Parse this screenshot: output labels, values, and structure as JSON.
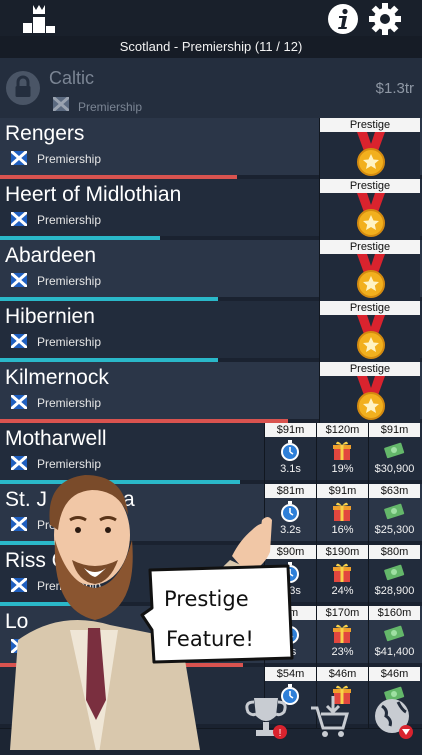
{
  "header": {
    "league_title": "Scotland - Premiership (11 / 12)"
  },
  "locked_team": {
    "name": "Caltic",
    "league": "Premiership",
    "value": "$1.3tr"
  },
  "prestige_label": "Prestige",
  "teams": [
    {
      "name": "Rengers",
      "league": "Premiership",
      "progress": 0.74,
      "progress_color": "#d9534f",
      "kind": "prestige"
    },
    {
      "name": "Heert of Midlothian",
      "league": "Premiership",
      "progress": 0.5,
      "progress_color": "#2ab8c9",
      "kind": "prestige"
    },
    {
      "name": "Abardeen",
      "league": "Premiership",
      "progress": 0.68,
      "progress_color": "#2ab8c9",
      "kind": "prestige"
    },
    {
      "name": "Hibernien",
      "league": "Premiership",
      "progress": 0.68,
      "progress_color": "#2ab8c9",
      "kind": "prestige"
    },
    {
      "name": "Kilmernock",
      "league": "Premiership",
      "progress": 0.9,
      "progress_color": "#d9534f",
      "kind": "prestige"
    },
    {
      "name": "Motharwell",
      "league": "Premiership",
      "progress": 0.75,
      "progress_color": "#2ab8c9",
      "kind": "stats",
      "stats": [
        {
          "head": "$91m",
          "value": "3.1s"
        },
        {
          "head": "$120m",
          "value": "19%"
        },
        {
          "head": "$91m",
          "value": "$30,900"
        }
      ]
    },
    {
      "name": "St. J",
      "name_tail": "a",
      "league": "Premiership",
      "progress": 0.35,
      "progress_color": "#2ab8c9",
      "kind": "stats",
      "stats": [
        {
          "head": "$81m",
          "value": "3.2s"
        },
        {
          "head": "$91m",
          "value": "16%"
        },
        {
          "head": "$63m",
          "value": "$25,300"
        }
      ]
    },
    {
      "name": "Riss Co",
      "league": "Premiership",
      "progress": 0.3,
      "progress_color": "#2ab8c9",
      "kind": "stats",
      "stats": [
        {
          "head": "$90m",
          "value": "3.3s"
        },
        {
          "head": "$190m",
          "value": "24%"
        },
        {
          "head": "$80m",
          "value": "$28,900"
        }
      ]
    },
    {
      "name": "Lo",
      "league": "Premiership",
      "progress": 0.76,
      "progress_color": "#d9534f",
      "kind": "stats",
      "stats": [
        {
          "head": "0m",
          "value": "1s"
        },
        {
          "head": "$170m",
          "value": "23%"
        },
        {
          "head": "$160m",
          "value": "$41,400"
        }
      ]
    },
    {
      "name": "",
      "league": "",
      "progress": 0,
      "progress_color": "#2ab8c9",
      "kind": "stats",
      "stats": [
        {
          "head": "$54m",
          "value": ""
        },
        {
          "head": "$46m",
          "value": ""
        },
        {
          "head": "$46m",
          "value": ""
        }
      ]
    }
  ],
  "speech_bubble": {
    "line1": "Prestige",
    "line2": "Feature!"
  },
  "colors": {
    "background": "#1c2533",
    "accent_red": "#d9534f",
    "accent_cyan": "#2ab8c9",
    "gold": "#f2b01e"
  },
  "icons": {
    "top_left": "podium-crown-icon",
    "info": "info-icon",
    "settings": "gear-icon",
    "lock": "lock-icon",
    "flag": "scotland-flag-icon",
    "timer": "stopwatch-icon",
    "gift": "gift-icon",
    "cash": "cash-icon",
    "nav1": "trophy-icon",
    "nav2": "cart-download-icon",
    "nav3": "globe-icon"
  }
}
